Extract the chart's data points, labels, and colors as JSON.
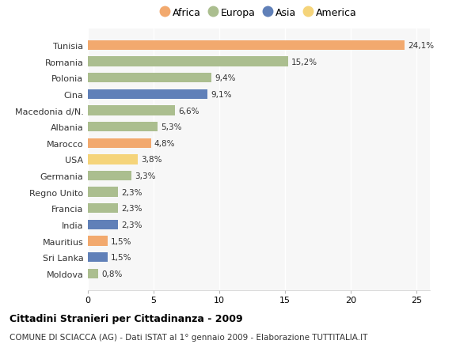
{
  "countries": [
    "Tunisia",
    "Romania",
    "Polonia",
    "Cina",
    "Macedonia d/N.",
    "Albania",
    "Marocco",
    "USA",
    "Germania",
    "Regno Unito",
    "Francia",
    "India",
    "Mauritius",
    "Sri Lanka",
    "Moldova"
  ],
  "values": [
    24.1,
    15.2,
    9.4,
    9.1,
    6.6,
    5.3,
    4.8,
    3.8,
    3.3,
    2.3,
    2.3,
    2.3,
    1.5,
    1.5,
    0.8
  ],
  "labels": [
    "24,1%",
    "15,2%",
    "9,4%",
    "9,1%",
    "6,6%",
    "5,3%",
    "4,8%",
    "3,8%",
    "3,3%",
    "2,3%",
    "2,3%",
    "2,3%",
    "1,5%",
    "1,5%",
    "0,8%"
  ],
  "continents": [
    "Africa",
    "Europa",
    "Europa",
    "Asia",
    "Europa",
    "Europa",
    "Africa",
    "America",
    "Europa",
    "Europa",
    "Europa",
    "Asia",
    "Africa",
    "Asia",
    "Europa"
  ],
  "colors": {
    "Africa": "#F2A96E",
    "Europa": "#ABBE8F",
    "Asia": "#6080B8",
    "America": "#F5D47A"
  },
  "legend_order": [
    "Africa",
    "Europa",
    "Asia",
    "America"
  ],
  "title": "Cittadini Stranieri per Cittadinanza - 2009",
  "subtitle": "COMUNE DI SCIACCA (AG) - Dati ISTAT al 1° gennaio 2009 - Elaborazione TUTTITALIA.IT",
  "xlim": [
    0,
    26
  ],
  "xticks": [
    0,
    5,
    10,
    15,
    20,
    25
  ],
  "background_color": "#ffffff",
  "plot_bg_color": "#f7f7f7",
  "grid_color": "#ffffff"
}
